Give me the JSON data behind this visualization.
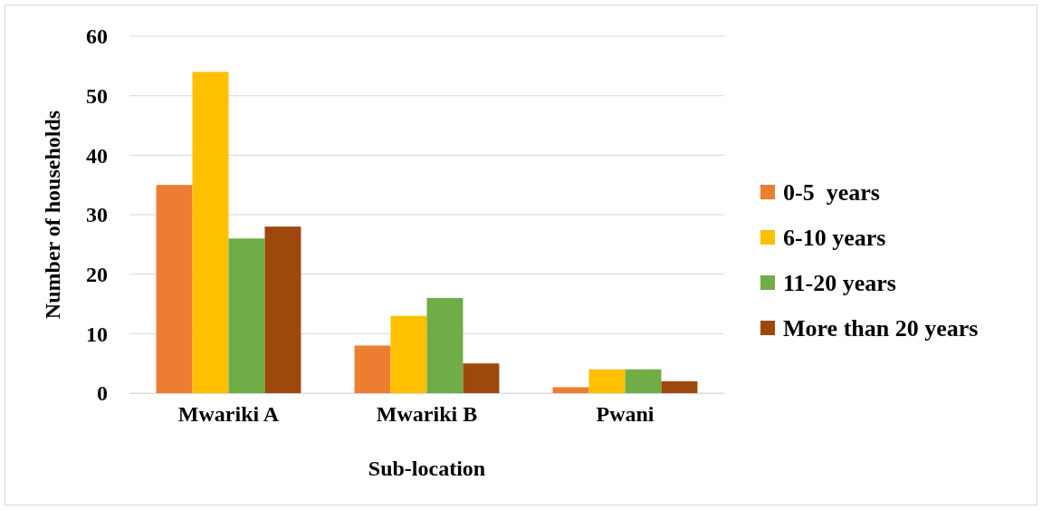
{
  "chart_data": {
    "type": "bar",
    "xlabel": "Sub-location",
    "ylabel": "Number of households",
    "categories": [
      "Mwariki A",
      "Mwariki B",
      "Pwani"
    ],
    "series": [
      {
        "name": "0-5  years",
        "color": "#ed7d31",
        "values": [
          35,
          8,
          1
        ]
      },
      {
        "name": "6-10 years",
        "color": "#ffc000",
        "values": [
          54,
          13,
          4
        ]
      },
      {
        "name": "11-20 years",
        "color": "#70ad47",
        "values": [
          26,
          16,
          4
        ]
      },
      {
        "name": "More than 20 years",
        "color": "#9e480e",
        "values": [
          28,
          5,
          2
        ]
      }
    ],
    "ylim": [
      0,
      60
    ],
    "yticks": [
      0,
      10,
      20,
      30,
      40,
      50,
      60
    ],
    "grid": "y",
    "legend": "right"
  }
}
